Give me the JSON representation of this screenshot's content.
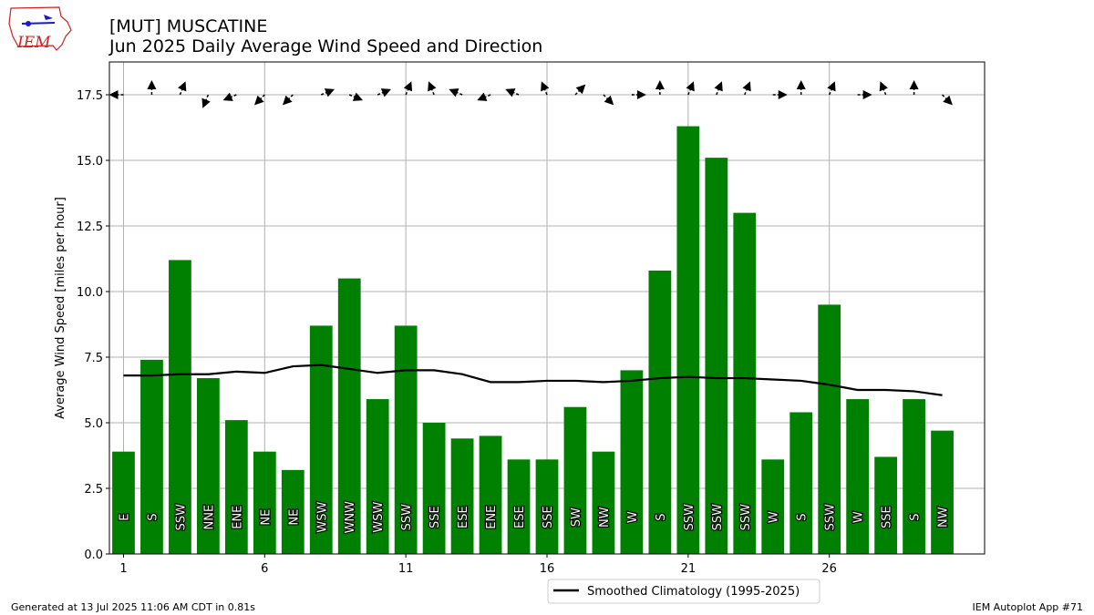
{
  "page": {
    "title_line1": "[MUT] MUSCATINE",
    "title_line2": "Jun 2025 Daily Average Wind Speed and Direction",
    "footer_left": "Generated at 13 Jul 2025 11:06 AM CDT in 0.81s",
    "footer_right": "IEM Autoplot App #71",
    "logo_text": "IEM"
  },
  "colors": {
    "bar": "#008000",
    "climatology": "#000000",
    "grid": "#b0b0b0",
    "logo_red": "#cc2222",
    "logo_blue": "#1a1acc"
  },
  "chart_data": {
    "type": "bar",
    "title": "[MUT] MUSCATINE\nJun 2025 Daily Average Wind Speed and Direction",
    "xlabel": "",
    "ylabel": "Average Wind Speed [miles per hour]",
    "xlim": [
      0.5,
      31.5
    ],
    "ylim": [
      0,
      18.75
    ],
    "x_ticks": [
      1,
      6,
      11,
      16,
      21,
      26
    ],
    "y_ticks": [
      0.0,
      2.5,
      5.0,
      7.5,
      10.0,
      12.5,
      15.0,
      17.5
    ],
    "grid": true,
    "legend_position": "below",
    "days": [
      1,
      2,
      3,
      4,
      5,
      6,
      7,
      8,
      9,
      10,
      11,
      12,
      13,
      14,
      15,
      16,
      17,
      18,
      19,
      20,
      21,
      22,
      23,
      24,
      25,
      26,
      27,
      28,
      29,
      30
    ],
    "values": [
      3.9,
      7.4,
      11.2,
      6.7,
      5.1,
      3.9,
      3.2,
      8.7,
      10.5,
      5.9,
      8.7,
      5.0,
      4.4,
      4.5,
      3.6,
      3.6,
      5.6,
      3.9,
      7.0,
      10.8,
      16.3,
      15.1,
      13.0,
      3.6,
      5.4,
      9.5,
      5.9,
      3.7,
      5.9,
      4.7
    ],
    "directions": [
      "E",
      "S",
      "SSW",
      "NNE",
      "ENE",
      "NE",
      "NE",
      "WSW",
      "WNW",
      "WSW",
      "SSW",
      "SSE",
      "ESE",
      "ENE",
      "ESE",
      "SSE",
      "SW",
      "NW",
      "W",
      "S",
      "SSW",
      "SSW",
      "SSW",
      "W",
      "S",
      "SSW",
      "W",
      "SSE",
      "S",
      "NW"
    ],
    "series": [
      {
        "name": "Smoothed Climatology (1995-2025)",
        "type": "line",
        "values": [
          6.8,
          6.8,
          6.85,
          6.85,
          6.95,
          6.9,
          7.15,
          7.2,
          7.05,
          6.9,
          7.0,
          7.0,
          6.85,
          6.55,
          6.55,
          6.6,
          6.6,
          6.55,
          6.6,
          6.7,
          6.75,
          6.7,
          6.7,
          6.65,
          6.6,
          6.45,
          6.25,
          6.25,
          6.2,
          6.05
        ]
      }
    ],
    "arrow_level": 17.5,
    "arrow_directions_deg": [
      90,
      180,
      202.5,
      22.5,
      67.5,
      45,
      45,
      247.5,
      292.5,
      247.5,
      202.5,
      157.5,
      112.5,
      67.5,
      112.5,
      157.5,
      225,
      315,
      270,
      180,
      202.5,
      202.5,
      202.5,
      270,
      180,
      202.5,
      270,
      157.5,
      180,
      315
    ]
  }
}
